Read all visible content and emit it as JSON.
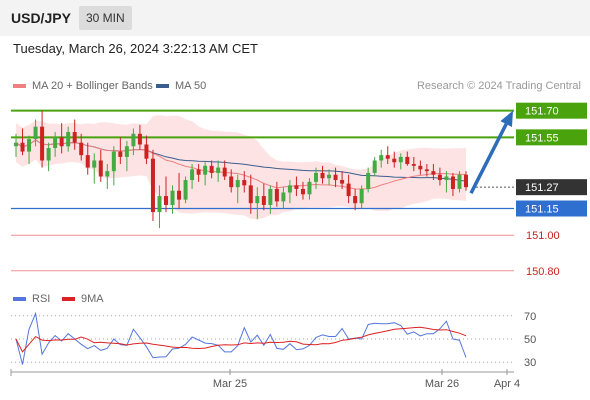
{
  "header": {
    "symbol": "USD/JPY",
    "timeframe": "30 MIN"
  },
  "datetime": "Tuesday, March 26, 2024 3:22:13 AM CET",
  "legend": {
    "ma_bb": "MA 20 + Bollinger Bands",
    "ma50": "MA 50"
  },
  "credit": "Research © 2024 Trading Central",
  "rsi_legend": {
    "rsi": "RSI",
    "ma9": "9MA"
  },
  "colors": {
    "up": "#44aa44",
    "down": "#cc2222",
    "ma20": "#f08080",
    "ma50": "#3a5d8f",
    "band": "#fde0e0",
    "green_level": "#4aa30c",
    "blue_level": "#2f6fd0",
    "red_level": "#f09090",
    "last_price": "#333333",
    "arrow": "#2c6cb8",
    "rsi": "#5577dd",
    "rsi_ma": "#dd2222"
  },
  "chart_data": {
    "type": "candlestick",
    "symbol": "USD/JPY",
    "timeframe": "30 MIN",
    "y_range": [
      150.72,
      151.76
    ],
    "x_ticks": [
      "Mar 25",
      "Mar 26",
      "Apr 4"
    ],
    "levels": [
      {
        "value": 151.7,
        "label": "151.70",
        "kind": "resistance"
      },
      {
        "value": 151.55,
        "label": "151.55",
        "kind": "resistance"
      },
      {
        "value": 151.27,
        "label": "151.27",
        "kind": "last"
      },
      {
        "value": 151.15,
        "label": "151.15",
        "kind": "pivot"
      },
      {
        "value": 151.0,
        "label": "151.00",
        "kind": "support"
      },
      {
        "value": 150.8,
        "label": "150.80",
        "kind": "support"
      }
    ],
    "candles": [
      [
        151.5,
        151.57,
        151.44,
        151.52
      ],
      [
        151.52,
        151.6,
        151.45,
        151.47
      ],
      [
        151.47,
        151.56,
        151.4,
        151.54
      ],
      [
        151.54,
        151.65,
        151.5,
        151.61
      ],
      [
        151.61,
        151.7,
        151.38,
        151.42
      ],
      [
        151.42,
        151.52,
        151.36,
        151.49
      ],
      [
        151.49,
        151.58,
        151.44,
        151.55
      ],
      [
        151.55,
        151.63,
        151.46,
        151.5
      ],
      [
        151.5,
        151.61,
        151.47,
        151.58
      ],
      [
        151.58,
        151.65,
        151.48,
        151.52
      ],
      [
        151.52,
        151.57,
        151.42,
        151.45
      ],
      [
        151.45,
        151.52,
        151.34,
        151.38
      ],
      [
        151.38,
        151.46,
        151.29,
        151.42
      ],
      [
        151.42,
        151.48,
        151.3,
        151.33
      ],
      [
        151.33,
        151.4,
        151.26,
        151.36
      ],
      [
        151.36,
        151.5,
        151.28,
        151.47
      ],
      [
        151.47,
        151.55,
        151.4,
        151.44
      ],
      [
        151.44,
        151.53,
        151.36,
        151.5
      ],
      [
        151.5,
        151.6,
        151.45,
        151.57
      ],
      [
        151.57,
        151.62,
        151.48,
        151.51
      ],
      [
        151.51,
        151.56,
        151.4,
        151.43
      ],
      [
        151.43,
        151.48,
        151.08,
        151.13
      ],
      [
        151.13,
        151.28,
        151.04,
        151.22
      ],
      [
        151.22,
        151.33,
        151.13,
        151.17
      ],
      [
        151.17,
        151.28,
        151.12,
        151.25
      ],
      [
        151.25,
        151.35,
        151.15,
        151.2
      ],
      [
        151.2,
        151.33,
        151.18,
        151.31
      ],
      [
        151.31,
        151.4,
        151.26,
        151.37
      ],
      [
        151.37,
        151.4,
        151.3,
        151.34
      ],
      [
        151.34,
        151.41,
        151.28,
        151.39
      ],
      [
        151.39,
        151.42,
        151.32,
        151.35
      ],
      [
        151.35,
        151.42,
        151.3,
        151.38
      ],
      [
        151.38,
        151.42,
        151.31,
        151.33
      ],
      [
        151.33,
        151.37,
        151.24,
        151.27
      ],
      [
        151.27,
        151.34,
        151.18,
        151.31
      ],
      [
        151.31,
        151.36,
        151.24,
        151.28
      ],
      [
        151.28,
        151.34,
        151.12,
        151.18
      ],
      [
        151.18,
        151.27,
        151.09,
        151.22
      ],
      [
        151.22,
        151.29,
        151.14,
        151.17
      ],
      [
        151.17,
        151.28,
        151.12,
        151.26
      ],
      [
        151.26,
        151.3,
        151.16,
        151.19
      ],
      [
        151.19,
        151.27,
        151.15,
        151.24
      ],
      [
        151.24,
        151.31,
        151.18,
        151.28
      ],
      [
        151.28,
        151.33,
        151.22,
        151.26
      ],
      [
        151.26,
        151.3,
        151.2,
        151.23
      ],
      [
        151.23,
        151.32,
        151.2,
        151.3
      ],
      [
        151.3,
        151.38,
        151.26,
        151.35
      ],
      [
        151.35,
        151.39,
        151.29,
        151.32
      ],
      [
        151.32,
        151.37,
        151.28,
        151.34
      ],
      [
        151.34,
        151.38,
        151.27,
        151.31
      ],
      [
        151.31,
        151.36,
        151.26,
        151.29
      ],
      [
        151.29,
        151.34,
        151.18,
        151.22
      ],
      [
        151.22,
        151.26,
        151.14,
        151.18
      ],
      [
        151.18,
        151.28,
        151.15,
        151.26
      ],
      [
        151.26,
        151.38,
        151.24,
        151.35
      ],
      [
        151.35,
        151.44,
        151.33,
        151.42
      ],
      [
        151.42,
        151.48,
        151.38,
        151.45
      ],
      [
        151.45,
        151.5,
        151.4,
        151.43
      ],
      [
        151.43,
        151.47,
        151.38,
        151.41
      ],
      [
        151.41,
        151.46,
        151.37,
        151.44
      ],
      [
        151.44,
        151.47,
        151.39,
        151.4
      ],
      [
        151.4,
        151.44,
        151.36,
        151.39
      ],
      [
        151.39,
        151.42,
        151.34,
        151.37
      ],
      [
        151.37,
        151.4,
        151.33,
        151.36
      ],
      [
        151.36,
        151.4,
        151.31,
        151.34
      ],
      [
        151.34,
        151.38,
        151.28,
        151.31
      ],
      [
        151.31,
        151.36,
        151.24,
        151.33
      ],
      [
        151.33,
        151.35,
        151.22,
        151.26
      ],
      [
        151.26,
        151.36,
        151.24,
        151.34
      ],
      [
        151.34,
        151.36,
        151.25,
        151.27
      ]
    ],
    "rsi": {
      "levels": [
        70,
        50,
        30
      ],
      "y_range": [
        25,
        75
      ]
    }
  }
}
